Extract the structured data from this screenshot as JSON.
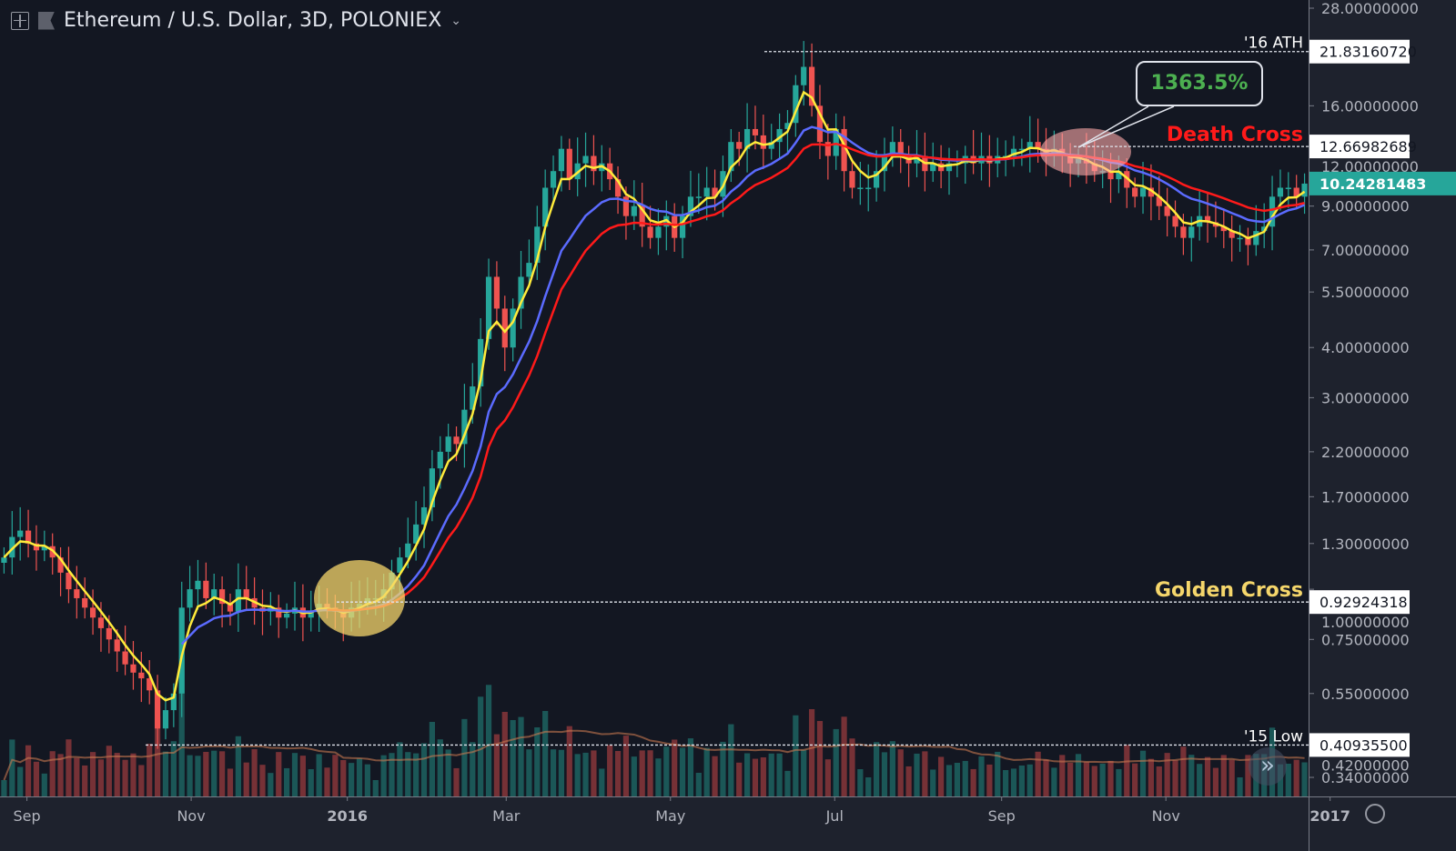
{
  "header": {
    "title": "Ethereum / U.S. Dollar, 3D, POLONIEX"
  },
  "colors": {
    "up": "#26a69a",
    "down": "#ef5350",
    "ma_fast": "#ffeb3b",
    "ma_mid": "#5b6bff",
    "ma_slow": "#ff1a1a",
    "golden": "#f5d66b",
    "death": "#ff1a1a",
    "gain": "#4caf50"
  },
  "chart_data": {
    "type": "candlestick",
    "title": "Ethereum / U.S. Dollar, 3D, POLONIEX",
    "yscale": "log",
    "ylim": [
      0.32,
      30
    ],
    "y_ticks": [
      "28.00000000",
      "16.00000000",
      "12.00000000",
      "9.00000000",
      "7.00000000",
      "5.50000000",
      "4.00000000",
      "3.00000000",
      "2.20000000",
      "1.70000000",
      "1.30000000",
      "1.00000000",
      "0.75000000",
      "0.55000000",
      "0.42000000",
      "0.34000000"
    ],
    "y_tick_values": [
      28,
      16,
      12,
      9,
      7,
      5.5,
      4,
      3,
      2.2,
      1.7,
      1.3,
      1,
      0.75,
      0.55,
      0.42,
      0.34
    ],
    "x_ticks": [
      {
        "label": "Sep",
        "day": 10
      },
      {
        "label": "Nov",
        "day": 71
      },
      {
        "label": "2016",
        "day": 129
      },
      {
        "label": "Mar",
        "day": 188
      },
      {
        "label": "May",
        "day": 249
      },
      {
        "label": "Jul",
        "day": 310
      },
      {
        "label": "Sep",
        "day": 372
      },
      {
        "label": "Nov",
        "day": 433
      },
      {
        "label": "2017",
        "day": 494
      }
    ],
    "candle_days": 3,
    "closes": [
      1.2,
      1.35,
      1.4,
      1.3,
      1.25,
      1.28,
      1.2,
      1.1,
      1.0,
      0.95,
      0.9,
      0.85,
      0.8,
      0.75,
      0.7,
      0.65,
      0.62,
      0.6,
      0.56,
      0.45,
      0.5,
      0.55,
      0.9,
      1.0,
      1.05,
      0.95,
      1.0,
      0.92,
      0.88,
      1.0,
      0.95,
      0.9,
      0.88,
      0.9,
      0.85,
      0.87,
      0.9,
      0.85,
      0.88,
      0.92,
      0.9,
      0.88,
      0.85,
      0.9,
      0.92,
      0.95,
      0.95,
      1.0,
      1.1,
      1.2,
      1.3,
      1.45,
      1.6,
      2.0,
      2.2,
      2.4,
      2.3,
      2.8,
      3.2,
      4.2,
      6.0,
      5.0,
      4.0,
      5.0,
      6.0,
      6.5,
      8.0,
      10,
      11,
      12.5,
      10.5,
      11.5,
      12,
      11,
      11.5,
      10.5,
      9.5,
      8.5,
      9,
      8,
      7.5,
      8,
      8.5,
      7.5,
      8.5,
      9.5,
      9.5,
      10,
      9.5,
      11,
      13,
      12.5,
      14,
      13.5,
      12.5,
      13,
      14,
      14.5,
      18,
      20,
      16,
      13,
      12,
      14,
      11,
      10,
      10,
      10,
      11,
      12,
      13,
      12,
      11.5,
      12,
      11,
      11.5,
      11,
      11.5,
      11.5,
      12,
      11.5,
      12,
      11.5,
      12,
      12,
      12.5,
      12.5,
      13,
      12.5,
      12,
      12.5,
      12,
      11.5,
      11.8,
      11.5,
      11,
      11,
      10.5,
      11,
      10,
      9.5,
      10,
      9.5,
      9,
      8.5,
      8,
      7.5,
      8,
      8.5,
      8.2,
      8,
      7.8,
      7.5,
      7.5,
      7.2,
      7.8,
      8,
      9.5,
      10,
      10,
      9.5,
      10.24
    ],
    "series": [
      {
        "name": "MA fast",
        "color": "#ffeb3b"
      },
      {
        "name": "MA mid",
        "color": "#5b6bff"
      },
      {
        "name": "MA slow",
        "color": "#ff1a1a"
      }
    ],
    "price_labels": [
      {
        "label": "'16 ATH",
        "value": "21.83160720",
        "price": 21.8316
      },
      {
        "label": "Death Cross",
        "value": "12.66982689",
        "price": 12.6698
      },
      {
        "label": "Golden Cross",
        "value": "0.92924318",
        "price": 0.92924
      },
      {
        "label": "'15 Low",
        "value": "0.40935500",
        "price": 0.409355
      }
    ],
    "current_price": {
      "value": "10.24281483",
      "price": 10.2428
    },
    "annotation": {
      "gain": "1363.5%"
    }
  }
}
